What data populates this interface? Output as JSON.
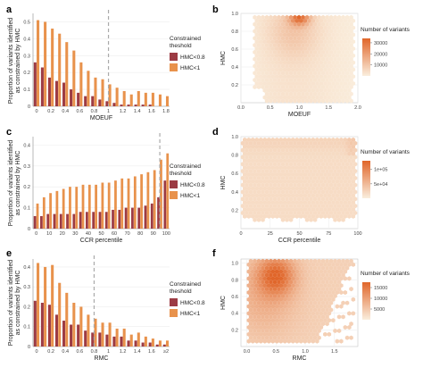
{
  "colors": {
    "dark_bar": "#9c3b44",
    "light_bar": "#e8924c",
    "hex_low": "#faeedd",
    "hex_high": "#e0662a",
    "dash": "#aaaaaa"
  },
  "ylabel_left": [
    "Proportion of variants identified",
    "as constrained by HMC"
  ],
  "chart_data": [
    {
      "id": "a",
      "type": "bar",
      "panel_label": "a",
      "categories": [
        "0",
        "0.1",
        "0.2",
        "0.3",
        "0.4",
        "0.5",
        "0.6",
        "0.7",
        "0.8",
        "0.9",
        "1",
        "1.1",
        "1.2",
        "1.3",
        "1.4",
        "1.5",
        "1.6",
        "1.7",
        "1.8"
      ],
      "xtick_labels": [
        "0",
        "",
        "0.2",
        "",
        "0.4",
        "",
        "0.6",
        "",
        "0.8",
        "",
        "1",
        "",
        "1.2",
        "",
        "1.4",
        "",
        "1.6",
        "",
        "1.8"
      ],
      "xlabel": "MOEUF",
      "ylim": [
        0,
        0.55
      ],
      "yticks": [
        "0",
        "0.1",
        "0.2",
        "0.3",
        "0.4",
        "0.5"
      ],
      "ytick_values": [
        0,
        0.1,
        0.2,
        0.3,
        0.4,
        0.5
      ],
      "dash_at": 10,
      "legend_title": [
        "Constrained",
        "theshold"
      ],
      "series": [
        {
          "name": "HMC<0.8",
          "color": "dark",
          "values": [
            0.26,
            0.23,
            0.17,
            0.15,
            0.14,
            0.1,
            0.08,
            0.06,
            0.06,
            0.04,
            0.03,
            0.02,
            0.01,
            0.01,
            0.01,
            0.01,
            0.01,
            0.0,
            0.0
          ]
        },
        {
          "name": "HMC<1",
          "color": "light",
          "values": [
            0.51,
            0.5,
            0.46,
            0.43,
            0.38,
            0.33,
            0.26,
            0.21,
            0.17,
            0.16,
            0.13,
            0.11,
            0.09,
            0.07,
            0.09,
            0.08,
            0.08,
            0.07,
            0.06
          ]
        }
      ]
    },
    {
      "id": "b",
      "type": "heatmap",
      "panel_label": "b",
      "xlabel": "MOEUF",
      "ylabel": "HMC",
      "xlim": [
        0,
        2
      ],
      "ylim": [
        0,
        1
      ],
      "xticks": [
        "0.0",
        "0.5",
        "1.0",
        "1.5",
        "2.0"
      ],
      "xtick_values": [
        0,
        0.5,
        1,
        1.5,
        2
      ],
      "yticks": [
        "0.2",
        "0.4",
        "0.6",
        "0.8",
        "1.0"
      ],
      "ytick_values": [
        0.2,
        0.4,
        0.6,
        0.8,
        1.0
      ],
      "legend_title": "Number of variants",
      "legend_ticks": [
        "30000",
        "20000",
        "10000"
      ],
      "legend_tick_values": [
        30000,
        20000,
        10000
      ],
      "legend_max": 34000
    },
    {
      "id": "c",
      "type": "bar",
      "panel_label": "c",
      "categories": [
        "0",
        "5",
        "10",
        "15",
        "20",
        "25",
        "30",
        "35",
        "40",
        "45",
        "50",
        "55",
        "60",
        "65",
        "70",
        "75",
        "80",
        "85",
        "90",
        "95",
        "100"
      ],
      "xtick_labels": [
        "0",
        "",
        "10",
        "",
        "20",
        "",
        "30",
        "",
        "40",
        "",
        "50",
        "",
        "60",
        "",
        "70",
        "",
        "80",
        "",
        "90",
        "",
        "100"
      ],
      "xlabel": "CCR percentile",
      "ylim": [
        0,
        0.44
      ],
      "yticks": [
        "0",
        "0.1",
        "0.2",
        "0.3",
        "0.4"
      ],
      "ytick_values": [
        0,
        0.1,
        0.2,
        0.3,
        0.4
      ],
      "dash_at": 19,
      "legend_title": [
        "Constrained",
        "theshold"
      ],
      "series": [
        {
          "name": "HMC<0.8",
          "color": "dark",
          "values": [
            0.06,
            0.06,
            0.07,
            0.07,
            0.07,
            0.07,
            0.07,
            0.08,
            0.08,
            0.08,
            0.08,
            0.08,
            0.09,
            0.09,
            0.1,
            0.1,
            0.1,
            0.11,
            0.12,
            0.15,
            0.23
          ]
        },
        {
          "name": "HMC<1",
          "color": "light",
          "values": [
            0.12,
            0.15,
            0.17,
            0.18,
            0.19,
            0.2,
            0.2,
            0.21,
            0.21,
            0.21,
            0.22,
            0.22,
            0.23,
            0.24,
            0.24,
            0.25,
            0.26,
            0.27,
            0.28,
            0.33,
            0.36
          ]
        }
      ]
    },
    {
      "id": "d",
      "type": "heatmap",
      "panel_label": "d",
      "xlabel": "CCR percentile",
      "ylabel": "HMC",
      "xlim": [
        0,
        100
      ],
      "ylim": [
        0,
        1
      ],
      "xticks": [
        "0",
        "25",
        "50",
        "75",
        "100"
      ],
      "xtick_values": [
        0,
        25,
        50,
        75,
        100
      ],
      "yticks": [
        "0.2",
        "0.4",
        "0.6",
        "0.8",
        "1.0"
      ],
      "ytick_values": [
        0.2,
        0.4,
        0.6,
        0.8,
        1.0
      ],
      "legend_title": "Number of variants",
      "legend_ticks": [
        "1e+05",
        "5e+04"
      ],
      "legend_tick_values": [
        100000,
        50000
      ],
      "legend_max": 130000
    },
    {
      "id": "e",
      "type": "bar",
      "panel_label": "e",
      "categories": [
        "0",
        "0.1",
        "0.2",
        "0.3",
        "0.4",
        "0.5",
        "0.6",
        "0.7",
        "0.8",
        "0.9",
        "1",
        "1.1",
        "1.2",
        "1.3",
        "1.4",
        "1.5",
        "1.6",
        "1.7",
        "≥2"
      ],
      "xtick_labels": [
        "0",
        "",
        "0.2",
        "",
        "0.4",
        "",
        "0.6",
        "",
        "0.8",
        "",
        "1",
        "",
        "1.2",
        "",
        "1.4",
        "",
        "1.6",
        "",
        "≥2"
      ],
      "xlabel": "RMC",
      "ylim": [
        0,
        0.44
      ],
      "yticks": [
        "0",
        "0.1",
        "0.2",
        "0.3",
        "0.4"
      ],
      "ytick_values": [
        0,
        0.1,
        0.2,
        0.3,
        0.4
      ],
      "dash_at": 8,
      "legend_title": [
        "Constrained",
        "theshold"
      ],
      "series": [
        {
          "name": "HMC<0.8",
          "color": "dark",
          "values": [
            0.23,
            0.22,
            0.21,
            0.16,
            0.13,
            0.11,
            0.11,
            0.08,
            0.07,
            0.07,
            0.06,
            0.05,
            0.05,
            0.03,
            0.03,
            0.02,
            0.02,
            0.01,
            0.01
          ]
        },
        {
          "name": "HMC<1",
          "color": "light",
          "values": [
            0.42,
            0.4,
            0.41,
            0.32,
            0.27,
            0.22,
            0.2,
            0.16,
            0.14,
            0.12,
            0.12,
            0.09,
            0.09,
            0.06,
            0.07,
            0.05,
            0.04,
            0.03,
            0.03
          ]
        }
      ]
    },
    {
      "id": "f",
      "type": "heatmap",
      "panel_label": "f",
      "xlabel": "RMC",
      "ylabel": "HMC",
      "xlim": [
        -0.1,
        1.9
      ],
      "ylim": [
        0,
        1.05
      ],
      "xticks": [
        "0.0",
        "0.5",
        "1.0",
        "1.5"
      ],
      "xtick_values": [
        0,
        0.5,
        1,
        1.5
      ],
      "yticks": [
        "0.2",
        "0.4",
        "0.6",
        "0.8",
        "1.0"
      ],
      "ytick_values": [
        0.2,
        0.4,
        0.6,
        0.8,
        1.0
      ],
      "legend_title": "Number of variants",
      "legend_ticks": [
        "15000",
        "10000",
        "5000"
      ],
      "legend_tick_values": [
        15000,
        10000,
        5000
      ],
      "legend_max": 17500
    }
  ]
}
